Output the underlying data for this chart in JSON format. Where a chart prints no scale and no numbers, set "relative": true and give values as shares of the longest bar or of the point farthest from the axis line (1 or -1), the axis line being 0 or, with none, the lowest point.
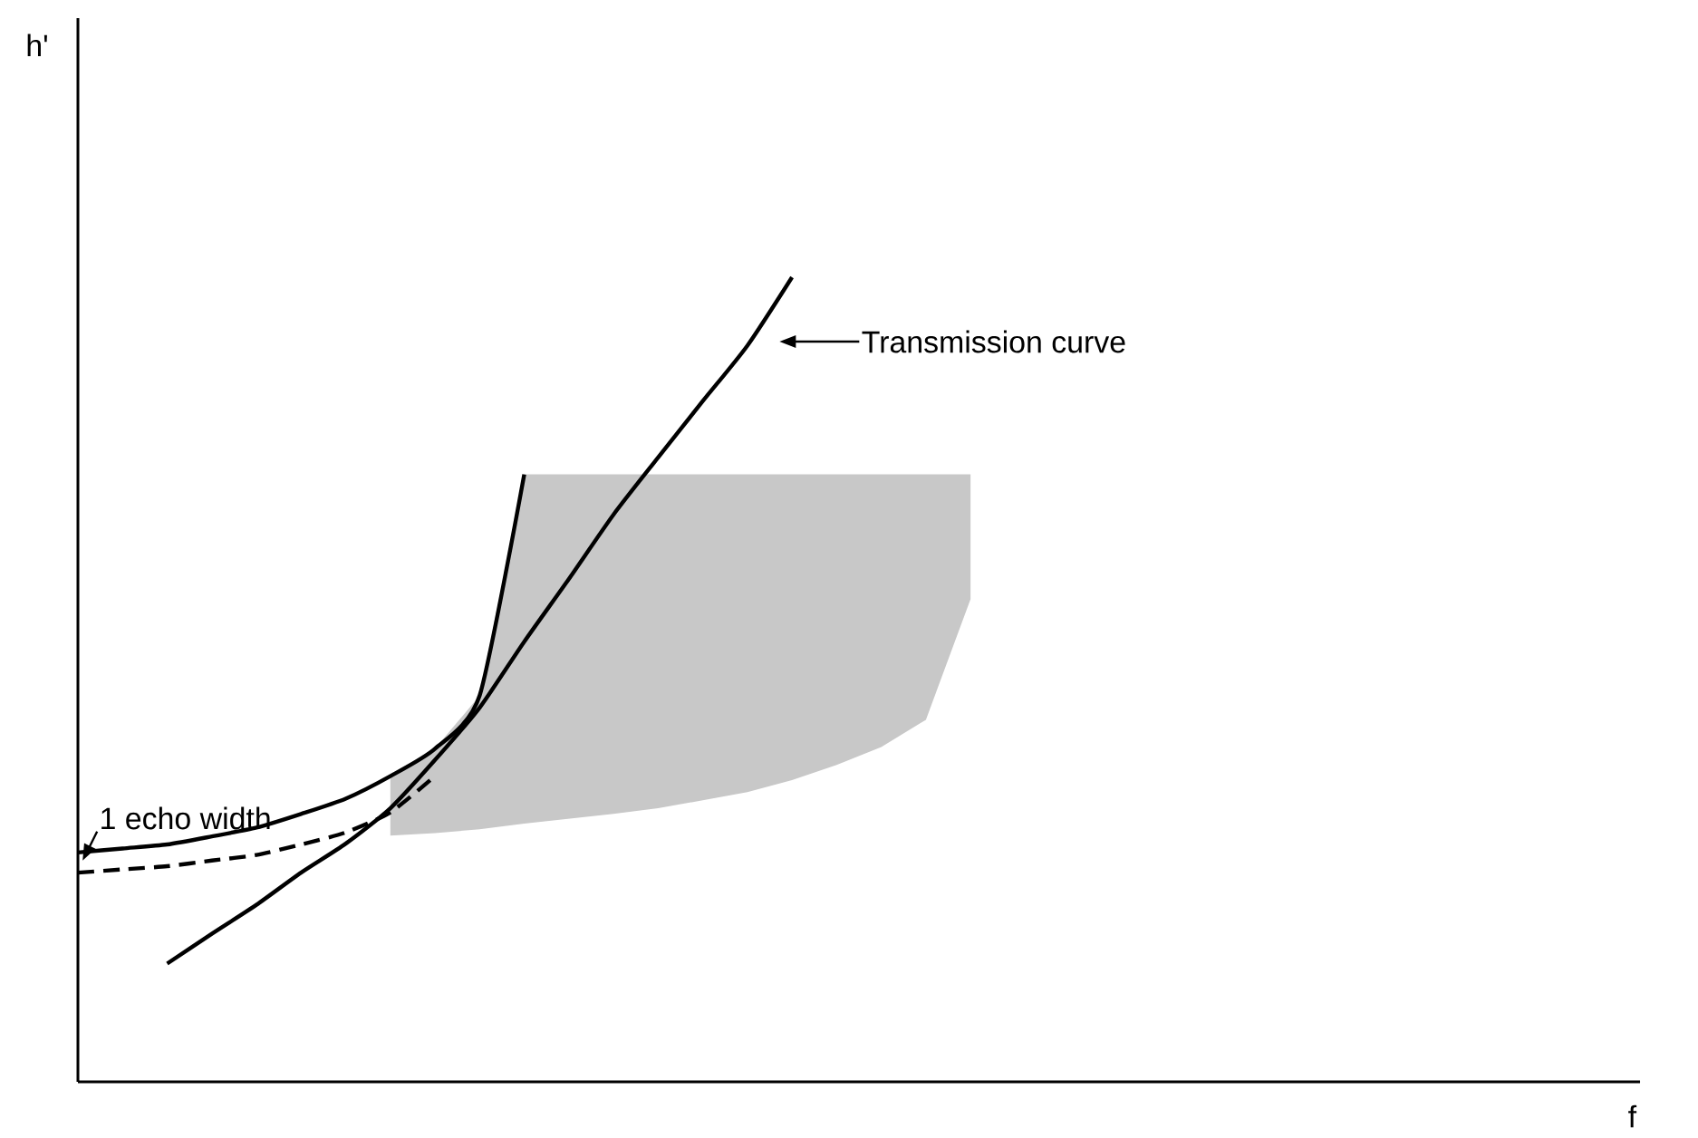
{
  "chart_data": {
    "type": "line",
    "relative": true,
    "xlabel": "f",
    "categories": [
      null,
      null,
      null,
      null,
      null,
      null,
      null,
      null,
      null,
      null,
      null,
      null,
      null,
      null,
      null,
      null,
      null,
      null,
      null,
      null,
      null,
      null,
      null,
      null,
      null,
      null,
      null,
      null,
      null,
      null,
      null,
      null,
      null,
      null,
      null,
      null
    ],
    "series": [
      {
        "color": "#c8c8c8",
        "values": [
          null,
          null,
          null,
          null,
          null,
          null,
          null,
          null,
          null,
          null,
          null,
          null,
          null,
          null,
          null,
          null,
          null,
          null,
          null,
          null,
          null,
          null,
          null,
          null,
          null,
          null,
          null,
          null,
          null,
          null,
          null,
          null,
          null,
          null,
          null,
          null
        ],
        "upper": [
          null,
          null,
          null,
          null,
          null,
          null,
          null,
          0.38,
          0.414,
          0.48,
          0.755,
          0.755,
          0.755,
          0.755,
          0.755,
          0.755,
          0.755,
          0.755,
          0.755,
          0.755,
          0.755,
          null,
          null,
          null,
          null,
          null,
          null,
          null,
          null,
          null,
          null,
          null,
          null,
          null,
          null,
          null
        ],
        "lower": [
          null,
          null,
          null,
          null,
          null,
          null,
          null,
          0.306,
          0.309,
          0.314,
          0.321,
          0.327,
          0.333,
          0.34,
          0.35,
          0.36,
          0.375,
          0.394,
          0.416,
          0.45,
          0.6,
          null,
          null,
          null,
          null,
          null,
          null,
          null,
          null,
          null,
          null,
          null,
          null,
          null,
          null,
          null
        ]
      },
      {
        "color": "#000000",
        "line_style": "solid",
        "values": [
          null,
          null,
          0.147,
          0.184,
          0.22,
          0.26,
          0.296,
          0.34,
          0.4,
          0.465,
          0.547,
          0.625,
          0.705,
          0.776,
          0.846,
          0.915,
          1,
          null,
          null,
          null,
          null,
          null,
          null,
          null,
          null,
          null,
          null,
          null,
          null,
          null,
          null,
          null,
          null,
          null,
          null,
          null
        ]
      },
      {
        "color": "#000000",
        "line_style": "solid",
        "values": [
          0.285,
          0.29,
          0.295,
          0.305,
          0.316,
          0.333,
          0.352,
          0.38,
          0.414,
          0.48,
          0.755,
          null,
          null,
          null,
          null,
          null,
          null,
          null,
          null,
          null,
          null,
          null,
          null,
          null,
          null,
          null,
          null,
          null,
          null,
          null,
          null,
          null,
          null,
          null,
          null,
          null
        ]
      },
      {
        "color": "#000000",
        "line_style": "dashed",
        "values": [
          0.26,
          0.264,
          0.268,
          0.275,
          0.282,
          0.295,
          0.31,
          0.335,
          0.38,
          null,
          null,
          null,
          null,
          null,
          null,
          null,
          null,
          null,
          null,
          null,
          null,
          null,
          null,
          null,
          null,
          null,
          null,
          null,
          null,
          null,
          null,
          null,
          null,
          null,
          null,
          null
        ]
      }
    ],
    "annotations": [
      "Transmission curve",
      "1 echo width",
      "h'"
    ]
  }
}
